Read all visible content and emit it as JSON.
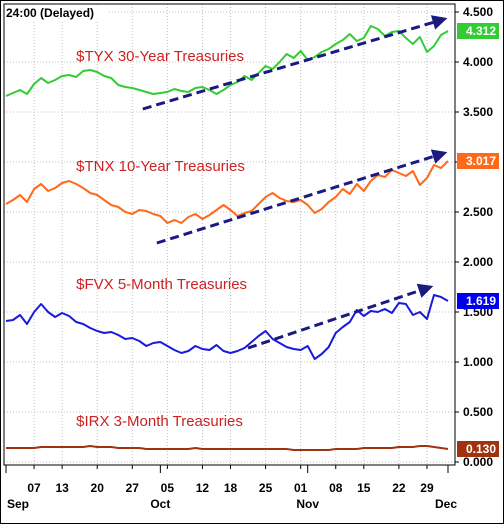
{
  "header": {
    "delayed_label": "24:00 (Delayed)"
  },
  "colors": {
    "tyx": "#33cc33",
    "tnx": "#ff6a1a",
    "fvx": "#1a1adf",
    "irx": "#a0330f",
    "label_text": "#cc2222",
    "arrow": "#1a1a80",
    "grid": "#c0c0c0",
    "border": "#000000",
    "badge_fvx": "#0000ee"
  },
  "chart_data": {
    "type": "line",
    "title": "",
    "xlabel": "",
    "ylabel": "",
    "ylim": [
      -0.1,
      4.6
    ],
    "y_ticks": [
      "4.500",
      "4.000",
      "3.500",
      "3.000",
      "2.500",
      "2.000",
      "1.500",
      "1.000",
      "0.500",
      "0.000"
    ],
    "y_tick_values": [
      4.5,
      4.0,
      3.5,
      3.0,
      2.5,
      2.0,
      1.5,
      1.0,
      0.5,
      0.0
    ],
    "x_tick_labels": [
      "07",
      "13",
      "20",
      "27",
      "05",
      "12",
      "18",
      "25",
      "01",
      "08",
      "15",
      "22",
      "29"
    ],
    "month_labels": [
      "Sep",
      "Oct",
      "Nov",
      "Dec"
    ],
    "x_count": 64,
    "x_tick_index": [
      4,
      8,
      13,
      18,
      23,
      28,
      32,
      37,
      42,
      47,
      51,
      56,
      60
    ],
    "month_index": [
      0,
      22,
      43,
      63
    ],
    "grid": true,
    "series": [
      {
        "name": "$TYX 30-Year Treasuries",
        "color_key": "tyx",
        "last_value": "4.312",
        "values": [
          3.66,
          3.69,
          3.72,
          3.68,
          3.78,
          3.84,
          3.79,
          3.82,
          3.86,
          3.87,
          3.85,
          3.91,
          3.92,
          3.9,
          3.86,
          3.84,
          3.77,
          3.75,
          3.74,
          3.72,
          3.7,
          3.68,
          3.69,
          3.7,
          3.73,
          3.71,
          3.7,
          3.74,
          3.75,
          3.72,
          3.68,
          3.72,
          3.77,
          3.8,
          3.86,
          3.82,
          3.89,
          3.96,
          3.93,
          4.0,
          4.08,
          4.04,
          4.11,
          4.02,
          4.05,
          4.1,
          4.13,
          4.18,
          4.22,
          4.28,
          4.21,
          4.24,
          4.36,
          4.33,
          4.26,
          4.3,
          4.31,
          4.24,
          4.18,
          4.25,
          4.1,
          4.16,
          4.27,
          4.31
        ]
      },
      {
        "name": "$TNX 10-Year Treasuries",
        "color_key": "tnx",
        "last_value": "3.017",
        "values": [
          2.58,
          2.62,
          2.67,
          2.6,
          2.73,
          2.78,
          2.71,
          2.74,
          2.79,
          2.81,
          2.78,
          2.74,
          2.69,
          2.67,
          2.62,
          2.57,
          2.55,
          2.5,
          2.48,
          2.52,
          2.51,
          2.48,
          2.46,
          2.39,
          2.42,
          2.39,
          2.45,
          2.48,
          2.43,
          2.47,
          2.52,
          2.57,
          2.52,
          2.46,
          2.49,
          2.51,
          2.58,
          2.65,
          2.69,
          2.64,
          2.61,
          2.6,
          2.62,
          2.57,
          2.49,
          2.53,
          2.6,
          2.65,
          2.73,
          2.68,
          2.78,
          2.71,
          2.81,
          2.87,
          2.85,
          2.92,
          2.89,
          2.86,
          2.91,
          2.77,
          2.84,
          2.97,
          2.94,
          3.01
        ]
      },
      {
        "name": "$FVX 5-Month Treasuries",
        "color_key": "fvx",
        "last_value": "1.619",
        "values": [
          1.41,
          1.42,
          1.47,
          1.38,
          1.5,
          1.58,
          1.5,
          1.45,
          1.49,
          1.46,
          1.4,
          1.38,
          1.34,
          1.31,
          1.29,
          1.3,
          1.27,
          1.23,
          1.24,
          1.21,
          1.16,
          1.19,
          1.2,
          1.16,
          1.12,
          1.09,
          1.11,
          1.16,
          1.13,
          1.12,
          1.17,
          1.11,
          1.09,
          1.11,
          1.14,
          1.2,
          1.26,
          1.31,
          1.23,
          1.19,
          1.15,
          1.13,
          1.12,
          1.16,
          1.03,
          1.08,
          1.15,
          1.29,
          1.35,
          1.4,
          1.52,
          1.46,
          1.51,
          1.5,
          1.53,
          1.49,
          1.59,
          1.58,
          1.47,
          1.5,
          1.43,
          1.67,
          1.65,
          1.61
        ]
      },
      {
        "name": "$IRX 3-Month Treasuries",
        "color_key": "irx",
        "last_value": "0.130",
        "values": [
          0.14,
          0.14,
          0.14,
          0.14,
          0.14,
          0.15,
          0.15,
          0.15,
          0.15,
          0.15,
          0.15,
          0.15,
          0.16,
          0.15,
          0.15,
          0.15,
          0.14,
          0.14,
          0.14,
          0.14,
          0.13,
          0.13,
          0.13,
          0.13,
          0.13,
          0.13,
          0.13,
          0.14,
          0.13,
          0.13,
          0.13,
          0.13,
          0.13,
          0.13,
          0.13,
          0.13,
          0.13,
          0.13,
          0.13,
          0.13,
          0.13,
          0.12,
          0.12,
          0.12,
          0.12,
          0.12,
          0.12,
          0.13,
          0.13,
          0.13,
          0.13,
          0.14,
          0.14,
          0.14,
          0.14,
          0.14,
          0.15,
          0.15,
          0.15,
          0.16,
          0.16,
          0.15,
          0.14,
          0.13
        ]
      }
    ],
    "annotations": [
      {
        "text": "$TYX 30-Year Treasuries",
        "series_index": 0,
        "at_x": 10,
        "at_y": 4.01
      },
      {
        "text": "$TNX 10-Year Treasuries",
        "series_index": 1,
        "at_x": 10,
        "at_y": 2.91
      },
      {
        "text": "$FVX 5-Month Treasuries",
        "series_index": 2,
        "at_x": 10,
        "at_y": 1.73
      },
      {
        "text": "$IRX 3-Month Treasuries",
        "series_index": 3,
        "at_x": 10,
        "at_y": 0.36
      }
    ],
    "trend_arrows": [
      {
        "series_index": 0,
        "x1": 19.5,
        "y1": 3.53,
        "x2": 62.5,
        "y2": 4.43
      },
      {
        "series_index": 1,
        "x1": 21.5,
        "y1": 2.19,
        "x2": 62.5,
        "y2": 3.09
      },
      {
        "series_index": 2,
        "x1": 34.5,
        "y1": 1.14,
        "x2": 60.5,
        "y2": 1.75
      }
    ]
  }
}
